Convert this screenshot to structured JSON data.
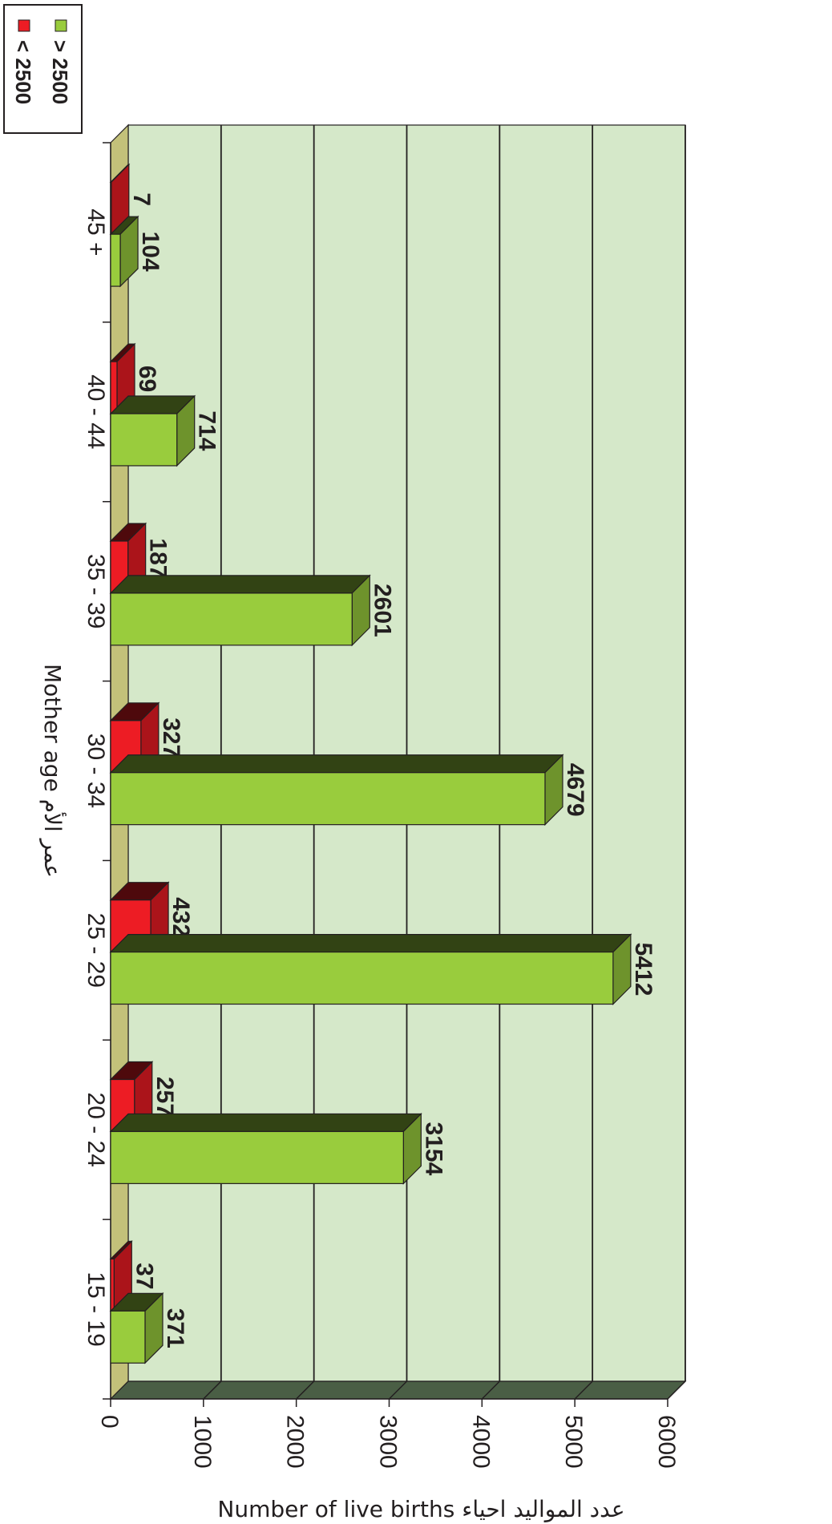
{
  "chart_data": {
    "type": "bar",
    "orientation": "horizontal",
    "three_d": true,
    "categories": [
      "15 - 19",
      "20 - 24",
      "25 - 29",
      "30 - 34",
      "35 - 39",
      "40 - 44",
      "45 +"
    ],
    "series": [
      {
        "name": "> 2500",
        "color": "#99cc3d",
        "values": [
          371,
          3154,
          5412,
          4679,
          2601,
          714,
          104
        ]
      },
      {
        "name": "< 2500",
        "color": "#ed1c24",
        "values": [
          37,
          257,
          432,
          327,
          187,
          69,
          7
        ]
      }
    ],
    "xlim": [
      0,
      6000
    ],
    "x_ticks": [
      0,
      1000,
      2000,
      3000,
      4000,
      5000,
      6000
    ],
    "xlabel": "Number of live births عدد المواليد احياء",
    "ylabel": "Mother age عمر الأم",
    "grid": true,
    "legend_position": "top-left",
    "colors": {
      "wall": "#d5e8c9",
      "floor": "#4a5e45",
      "side_wall": "#c3c17a"
    }
  }
}
